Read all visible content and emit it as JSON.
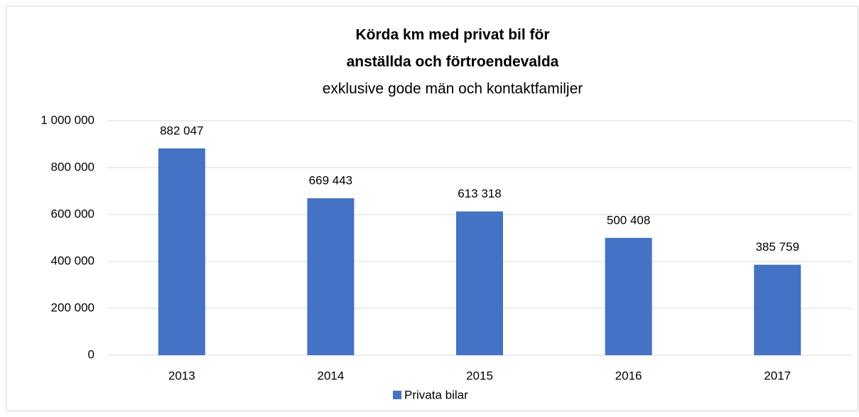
{
  "chart_data": {
    "type": "bar",
    "title": [
      "Körda km med privat bil för",
      "anställda och förtroendevalda"
    ],
    "subtitle": "exklusive gode män och kontaktfamiljer",
    "categories": [
      "2013",
      "2014",
      "2015",
      "2016",
      "2017"
    ],
    "series": [
      {
        "name": "Privata bilar",
        "color": "#4472c4",
        "values": [
          882047,
          669443,
          613318,
          500408,
          385759
        ],
        "value_labels": [
          "882 047",
          "669 443",
          "613 318",
          "500 408",
          "385 759"
        ]
      }
    ],
    "ylim": [
      0,
      1000000
    ],
    "yticks": [
      0,
      {
        "value": 200000,
        "label": "200 000"
      },
      {
        "value": 400000,
        "label": "400 000"
      },
      {
        "value": 600000,
        "label": "600 000"
      },
      {
        "value": 800000,
        "label": "800 000"
      },
      {
        "value": 1000000,
        "label": "1 000 000"
      }
    ],
    "grid": true,
    "legend": "bottom"
  }
}
